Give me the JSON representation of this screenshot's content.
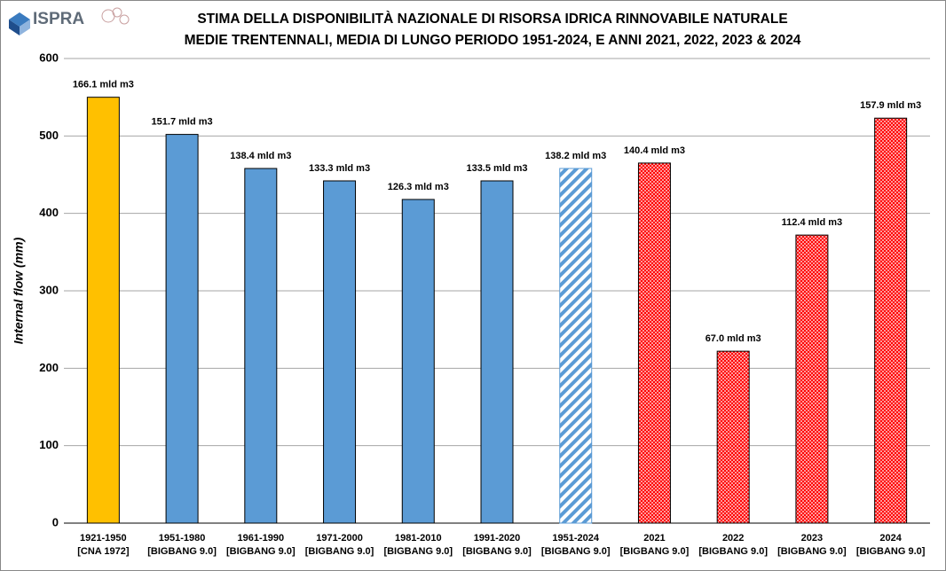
{
  "logo": "ISPRA",
  "chart_data": {
    "type": "bar",
    "title": "STIMA DELLA DISPONIBILITÀ NAZIONALE DI RISORSA IDRICA RINNOVABILE NATURALE",
    "subtitle": "MEDIE TRENTENNALI, MEDIA DI LUNGO PERIODO 1951-2024, E ANNI 2021, 2022, 2023 & 2024",
    "y_label": "Internal flow (mm)",
    "categories": [
      "1921-1950",
      "1951-1980",
      "1961-1990",
      "1971-2000",
      "1981-2010",
      "1991-2020",
      "1951-2024",
      "2021",
      "2022",
      "2023",
      "2024"
    ],
    "category_sources": [
      "[CNA 1972]",
      "[BIGBANG 9.0]",
      "[BIGBANG 9.0]",
      "[BIGBANG 9.0]",
      "[BIGBANG 9.0]",
      "[BIGBANG 9.0]",
      "[BIGBANG 9.0]",
      "[BIGBANG 9.0]",
      "[BIGBANG 9.0]",
      "[BIGBANG 9.0]",
      "[BIGBANG 9.0]"
    ],
    "values": [
      550,
      502,
      458,
      442,
      418,
      442,
      458,
      465,
      222,
      372,
      523
    ],
    "annotations": [
      "166.1 mld m3",
      "151.7 mld m3",
      "138.4 mld m3",
      "133.3 mld m3",
      "126.3 mld m3",
      "133.5 mld m3",
      "138.2 mld m3",
      "140.4 mld m3",
      "67.0 mld m3",
      "112.4 mld m3",
      "157.9 mld m3"
    ],
    "colors": [
      "#ffc000",
      "#5b9bd5",
      "#5b9bd5",
      "#5b9bd5",
      "#5b9bd5",
      "#5b9bd5",
      "#5b9bd5",
      "#ff0000",
      "#ff0000",
      "#ff0000",
      "#ff0000"
    ],
    "patterns": [
      "solid",
      "solid",
      "solid",
      "solid",
      "solid",
      "solid",
      "hatch",
      "checker",
      "checker",
      "checker",
      "checker"
    ],
    "ylim": [
      0,
      600
    ],
    "yticks": [
      0,
      100,
      200,
      300,
      400,
      500,
      600
    ],
    "grid": true
  }
}
